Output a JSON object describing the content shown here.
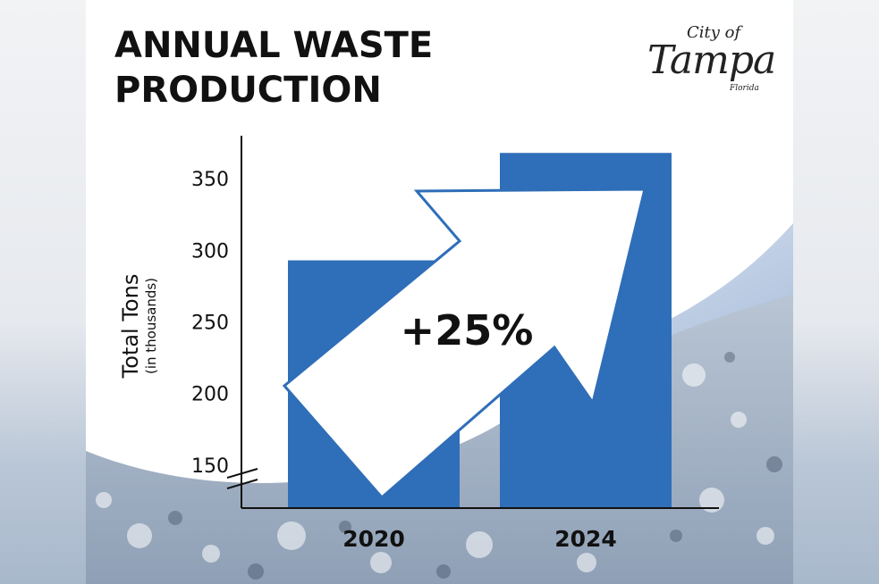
{
  "title": {
    "line1": "ANNUAL WASTE",
    "line2": "PRODUCTION"
  },
  "logo": {
    "top": "City of",
    "main": "Tampa",
    "sub": "Florida"
  },
  "colors": {
    "bar": "#2f6eb8",
    "arrow_outline": "#2f6eb8",
    "background": "#ffffff"
  },
  "chart_data": {
    "type": "bar",
    "categories": [
      "2020",
      "2024"
    ],
    "values": [
      293,
      368
    ],
    "ylabel": "Total Tons",
    "ylabel_sub": "(in thousands)",
    "yticks": [
      "150",
      "200",
      "250",
      "300",
      "350"
    ],
    "ylim": [
      120,
      380
    ],
    "axis_break": true,
    "annotation": "+25%",
    "grid": false,
    "legend": "none"
  }
}
